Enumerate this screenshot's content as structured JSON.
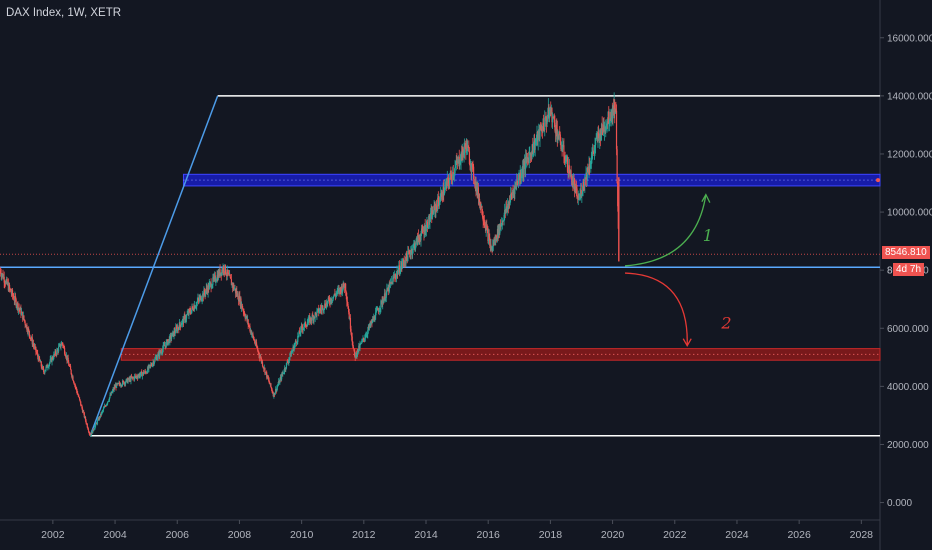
{
  "header": {
    "title": "DAX Index, 1W, XETR"
  },
  "price_tag": {
    "value": "8546.810",
    "countdown": "4d 7h",
    "partial_label": "80",
    "color": "#ef5350"
  },
  "colors": {
    "background": "#131722",
    "up": "#26a69a",
    "down": "#ef5350",
    "channel": "#4c9be8",
    "support_line": "#5aa9ff",
    "blue_zone": "#1a1fd6",
    "red_zone": "#8b1a1a",
    "white_line": "#ffffff",
    "arrow_up": "#4caf50",
    "arrow_down": "#e53935"
  },
  "annotations": {
    "label_1": "1",
    "label_2": "2"
  },
  "chart_data": {
    "type": "line",
    "style": "candlestick",
    "series_name": "DAX Index",
    "timeframe": "1W",
    "exchange": "XETR",
    "x_ticks": [
      "2002",
      "2004",
      "2006",
      "2008",
      "2010",
      "2012",
      "2014",
      "2016",
      "2018",
      "2020",
      "2022",
      "2024",
      "2026",
      "2028"
    ],
    "y_ticks": [
      "0.000",
      "2000.000",
      "4000.000",
      "6000.000",
      "8000.000",
      "10000.000",
      "12000.000",
      "14000.000",
      "16000.000"
    ],
    "xlim": [
      2000.3,
      2028.6
    ],
    "ylim": [
      -600,
      17300
    ],
    "key_points": [
      {
        "x": 2000.3,
        "y": 8000
      },
      {
        "x": 2001.0,
        "y": 6500
      },
      {
        "x": 2001.7,
        "y": 4500
      },
      {
        "x": 2002.3,
        "y": 5500
      },
      {
        "x": 2003.2,
        "y": 2300
      },
      {
        "x": 2004.0,
        "y": 4000
      },
      {
        "x": 2005.0,
        "y": 4500
      },
      {
        "x": 2006.0,
        "y": 6000
      },
      {
        "x": 2007.5,
        "y": 8100
      },
      {
        "x": 2008.0,
        "y": 7000
      },
      {
        "x": 2009.1,
        "y": 3700
      },
      {
        "x": 2010.0,
        "y": 6000
      },
      {
        "x": 2011.4,
        "y": 7500
      },
      {
        "x": 2011.7,
        "y": 5000
      },
      {
        "x": 2013.0,
        "y": 7800
      },
      {
        "x": 2014.0,
        "y": 9500
      },
      {
        "x": 2015.3,
        "y": 12300
      },
      {
        "x": 2016.1,
        "y": 8700
      },
      {
        "x": 2016.9,
        "y": 11000
      },
      {
        "x": 2018.0,
        "y": 13500
      },
      {
        "x": 2018.9,
        "y": 10400
      },
      {
        "x": 2019.5,
        "y": 12500
      },
      {
        "x": 2020.1,
        "y": 13700
      },
      {
        "x": 2020.15,
        "y": 11000
      },
      {
        "x": 2020.2,
        "y": 8546.81
      }
    ],
    "last_value": 8546.81,
    "drawings": {
      "resistance_line": {
        "y": 14000,
        "x_start": 2007.3,
        "x_end": 2028.6
      },
      "base_line": {
        "y": 2300,
        "x_start": 2003.2,
        "x_end": 2028.6
      },
      "support_line": {
        "y": 8100,
        "x_start": 2000.3,
        "x_end": 2028.6
      },
      "channel_left": [
        {
          "x": 2003.2,
          "y": 2300
        },
        {
          "x": 2007.3,
          "y": 14000
        }
      ],
      "blue_zone": {
        "y_low": 10900,
        "y_high": 11300,
        "x_start": 2006.2,
        "x_end": 2028.6
      },
      "red_zone": {
        "y_low": 4900,
        "y_high": 5300,
        "x_start": 2004.2,
        "x_end": 2028.6
      },
      "scenario_1": {
        "from": {
          "x": 2020.4,
          "y": 8150
        },
        "to": {
          "x": 2023.0,
          "y": 10600
        }
      },
      "scenario_2": {
        "from": {
          "x": 2020.4,
          "y": 7900
        },
        "to": {
          "x": 2022.4,
          "y": 5400
        }
      },
      "label_1_pos": {
        "x": 2022.9,
        "y": 9000
      },
      "label_2_pos": {
        "x": 2023.5,
        "y": 6000
      }
    }
  }
}
